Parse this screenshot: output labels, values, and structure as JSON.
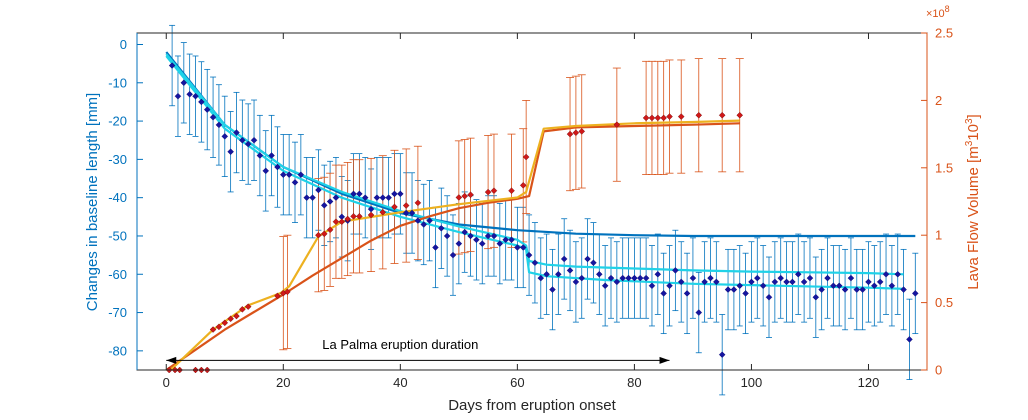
{
  "chart_data": {
    "type": "scatter",
    "xlabel": "Days from eruption onset",
    "y_left_label": "Changes in baseline length [mm]",
    "y_right_label_pre": "Lava Flow Volume [m",
    "y_right_label_sup": "3",
    "y_right_label_mid": "10",
    "y_right_label_post": "]",
    "y_right_exponent_base": "×10",
    "y_right_exponent_power": "8",
    "xlim": [
      -5,
      130
    ],
    "ylim_left": [
      -85,
      3
    ],
    "ylim_right": [
      0,
      2.5
    ],
    "xticks": [
      0,
      20,
      40,
      60,
      80,
      100,
      120
    ],
    "yticks_left": [
      0,
      -10,
      -20,
      -30,
      -40,
      -50,
      -60,
      -70,
      -80
    ],
    "yticks_right": [
      0,
      0.5,
      1,
      1.5,
      2,
      2.5
    ],
    "annotation": {
      "text": "La Palma eruption duration",
      "x_start": 0,
      "x_end": 86,
      "y": -82.5,
      "label_x": 40,
      "label_y": -79.5
    },
    "colors": {
      "left_axis": "#0072BD",
      "right_axis": "#D95319",
      "baseline_points": "#1515A0",
      "baseline_errorbars": "#0072BD",
      "model_dark_blue": "#0072BD",
      "model_cyan": "#1FD2E8",
      "lava_points": "#D01818",
      "lava_errorbars": "#D95319",
      "model_orange": "#D95319",
      "model_yellow": "#EDB120"
    },
    "series": [
      {
        "kind": "baseline_observations",
        "axis": "left",
        "error": 10.5,
        "points": [
          [
            1,
            -5.5
          ],
          [
            2,
            -13.5
          ],
          [
            3,
            -10
          ],
          [
            4,
            -13
          ],
          [
            5,
            -13.5
          ],
          [
            6,
            -15
          ],
          [
            7,
            -17
          ],
          [
            8,
            -19
          ],
          [
            9,
            -21
          ],
          [
            10,
            -24
          ],
          [
            11,
            -28
          ],
          [
            12,
            -23
          ],
          [
            13,
            -25
          ],
          [
            14,
            -26
          ],
          [
            15,
            -25
          ],
          [
            16,
            -29
          ],
          [
            17,
            -33
          ],
          [
            18,
            -29
          ],
          [
            19,
            -32
          ],
          [
            20,
            -34
          ],
          [
            21,
            -34
          ],
          [
            22,
            -36
          ],
          [
            23,
            -34
          ],
          [
            24,
            -40
          ],
          [
            25,
            -40
          ],
          [
            26,
            -38
          ],
          [
            27,
            -42
          ],
          [
            28,
            -41
          ],
          [
            29,
            -40
          ],
          [
            30,
            -45
          ],
          [
            31,
            -46
          ],
          [
            32,
            -39
          ],
          [
            33,
            -39
          ],
          [
            34,
            -40
          ],
          [
            35,
            -43
          ],
          [
            36,
            -40
          ],
          [
            37,
            -40
          ],
          [
            38,
            -40
          ],
          [
            39,
            -39
          ],
          [
            40,
            -39
          ],
          [
            41,
            -44
          ],
          [
            42,
            -44
          ],
          [
            43,
            -46
          ],
          [
            44,
            -47
          ],
          [
            45,
            -46
          ],
          [
            46,
            -53
          ],
          [
            47,
            -48
          ],
          [
            48,
            -50
          ],
          [
            49,
            -55
          ],
          [
            50,
            -52
          ],
          [
            51,
            -49
          ],
          [
            52,
            -50
          ],
          [
            53,
            -51
          ],
          [
            54,
            -52
          ],
          [
            55,
            -50
          ],
          [
            56,
            -50
          ],
          [
            57,
            -52
          ],
          [
            58,
            -51
          ],
          [
            59,
            -51
          ],
          [
            60,
            -53
          ],
          [
            61,
            -53
          ],
          [
            62,
            -55
          ],
          [
            63,
            -57
          ],
          [
            64,
            -61
          ],
          [
            65,
            -60
          ],
          [
            66,
            -64
          ],
          [
            67,
            -60
          ],
          [
            68,
            -56
          ],
          [
            69,
            -59
          ],
          [
            70,
            -62
          ],
          [
            71,
            -61
          ],
          [
            72,
            -56
          ],
          [
            73,
            -57
          ],
          [
            74,
            -60
          ],
          [
            75,
            -63
          ],
          [
            76,
            -61
          ],
          [
            77,
            -62
          ],
          [
            78,
            -61
          ],
          [
            79,
            -61
          ],
          [
            80,
            -61
          ],
          [
            81,
            -61
          ],
          [
            82,
            -61
          ],
          [
            83,
            -63
          ],
          [
            84,
            -60
          ],
          [
            85,
            -65
          ],
          [
            86,
            -63
          ],
          [
            87,
            -59
          ],
          [
            88,
            -62
          ],
          [
            89,
            -65
          ],
          [
            90,
            -61
          ],
          [
            91,
            -70
          ],
          [
            92,
            -62
          ],
          [
            93,
            -61
          ],
          [
            94,
            -62
          ],
          [
            95,
            -81
          ],
          [
            96,
            -64
          ],
          [
            97,
            -64
          ],
          [
            98,
            -63
          ],
          [
            99,
            -65
          ],
          [
            100,
            -62
          ],
          [
            101,
            -61
          ],
          [
            102,
            -63
          ],
          [
            103,
            -66
          ],
          [
            104,
            -62
          ],
          [
            105,
            -61
          ],
          [
            106,
            -62
          ],
          [
            107,
            -62
          ],
          [
            108,
            -60
          ],
          [
            109,
            -62
          ],
          [
            110,
            -61
          ],
          [
            111,
            -66
          ],
          [
            112,
            -64
          ],
          [
            113,
            -61
          ],
          [
            114,
            -63
          ],
          [
            115,
            -63
          ],
          [
            116,
            -64
          ],
          [
            117,
            -61
          ],
          [
            118,
            -64
          ],
          [
            119,
            -64
          ],
          [
            120,
            -62
          ],
          [
            121,
            -63
          ],
          [
            122,
            -62
          ],
          [
            123,
            -60
          ],
          [
            124,
            -63
          ],
          [
            125,
            -60
          ],
          [
            126,
            -64
          ],
          [
            127,
            -77
          ],
          [
            128,
            -65
          ]
        ]
      },
      {
        "kind": "lava_volume_observations",
        "axis": "right",
        "error": 0.42,
        "error_from_x": 20,
        "points": [
          [
            0.5,
            0
          ],
          [
            1.5,
            0
          ],
          [
            2.3,
            0
          ],
          [
            5,
            0
          ],
          [
            6,
            0
          ],
          [
            7,
            0
          ],
          [
            8,
            0.3
          ],
          [
            9,
            0.32
          ],
          [
            10,
            0.35
          ],
          [
            11,
            0.38
          ],
          [
            12,
            0.4
          ],
          [
            13,
            0.45
          ],
          [
            14,
            0.47
          ],
          [
            19,
            0.55
          ],
          [
            20,
            0.57
          ],
          [
            20.7,
            0.58
          ],
          [
            26,
            1.0
          ],
          [
            27,
            1.01
          ],
          [
            28,
            1.04
          ],
          [
            29,
            1.1
          ],
          [
            30,
            1.1
          ],
          [
            31,
            1.12
          ],
          [
            32,
            1.14
          ],
          [
            33,
            1.14
          ],
          [
            35,
            1.15
          ],
          [
            37,
            1.17
          ],
          [
            39,
            1.21
          ],
          [
            41,
            1.22
          ],
          [
            43,
            1.24
          ],
          [
            50,
            1.28
          ],
          [
            51,
            1.29
          ],
          [
            52,
            1.3
          ],
          [
            55,
            1.32
          ],
          [
            56,
            1.33
          ],
          [
            59,
            1.33
          ],
          [
            61,
            1.37
          ],
          [
            61.5,
            1.58
          ],
          [
            69,
            1.75
          ],
          [
            70,
            1.76
          ],
          [
            71,
            1.77
          ],
          [
            77,
            1.82
          ],
          [
            82,
            1.87
          ],
          [
            83,
            1.87
          ],
          [
            84,
            1.87
          ],
          [
            85,
            1.87
          ],
          [
            86,
            1.88
          ],
          [
            88,
            1.88
          ],
          [
            91,
            1.89
          ],
          [
            95,
            1.89
          ],
          [
            98,
            1.89
          ]
        ]
      },
      {
        "kind": "model_dark_blue",
        "axis": "left",
        "points": [
          [
            0,
            -2
          ],
          [
            10,
            -21
          ],
          [
            20,
            -32
          ],
          [
            30,
            -39
          ],
          [
            40,
            -44
          ],
          [
            50,
            -47
          ],
          [
            60,
            -48.5
          ],
          [
            70,
            -49.4
          ],
          [
            80,
            -49.8
          ],
          [
            90,
            -50
          ],
          [
            100,
            -50
          ],
          [
            110,
            -50
          ],
          [
            120,
            -50
          ],
          [
            128,
            -50
          ]
        ]
      },
      {
        "kind": "model_cyan",
        "axis": "left",
        "points": [
          [
            0,
            -2.5
          ],
          [
            10,
            -21
          ],
          [
            20,
            -32
          ],
          [
            30,
            -38.5
          ],
          [
            40,
            -43.5
          ],
          [
            50,
            -47.5
          ],
          [
            60,
            -51
          ],
          [
            61.5,
            -52.5
          ],
          [
            62,
            -56.5
          ],
          [
            65,
            -57.5
          ],
          [
            70,
            -58
          ],
          [
            80,
            -58.5
          ],
          [
            90,
            -59
          ],
          [
            100,
            -59.3
          ],
          [
            110,
            -59.5
          ],
          [
            120,
            -59.7
          ],
          [
            126,
            -60
          ]
        ]
      },
      {
        "kind": "model_cyan_lower",
        "axis": "left",
        "points": [
          [
            0,
            -3
          ],
          [
            10,
            -22
          ],
          [
            20,
            -33
          ],
          [
            30,
            -40
          ],
          [
            40,
            -45
          ],
          [
            50,
            -49
          ],
          [
            60,
            -52.5
          ],
          [
            61.5,
            -53.5
          ],
          [
            62,
            -59.5
          ],
          [
            65,
            -60.5
          ],
          [
            75,
            -61.5
          ],
          [
            90,
            -62.5
          ],
          [
            105,
            -63
          ],
          [
            120,
            -63.5
          ],
          [
            126,
            -63.8
          ]
        ]
      },
      {
        "kind": "model_orange",
        "axis": "right",
        "points": [
          [
            0,
            0
          ],
          [
            5,
            0.15
          ],
          [
            10,
            0.3
          ],
          [
            15,
            0.43
          ],
          [
            20,
            0.56
          ],
          [
            25,
            0.7
          ],
          [
            30,
            0.83
          ],
          [
            35,
            0.96
          ],
          [
            40,
            1.07
          ],
          [
            45,
            1.14
          ],
          [
            50,
            1.2
          ],
          [
            55,
            1.24
          ],
          [
            60,
            1.27
          ],
          [
            62,
            1.29
          ],
          [
            64.5,
            1.77
          ],
          [
            70,
            1.8
          ],
          [
            80,
            1.81
          ],
          [
            90,
            1.82
          ],
          [
            98,
            1.83
          ]
        ]
      },
      {
        "kind": "model_yellow",
        "axis": "right",
        "points": [
          [
            0,
            0
          ],
          [
            1,
            0.01
          ],
          [
            8,
            0.3
          ],
          [
            14,
            0.48
          ],
          [
            19.5,
            0.57
          ],
          [
            21,
            0.62
          ],
          [
            26,
            0.99
          ],
          [
            30,
            1.1
          ],
          [
            40,
            1.17
          ],
          [
            50,
            1.23
          ],
          [
            60,
            1.28
          ],
          [
            61.5,
            1.32
          ],
          [
            64.5,
            1.79
          ],
          [
            70,
            1.81
          ],
          [
            80,
            1.83
          ],
          [
            90,
            1.84
          ],
          [
            98,
            1.85
          ]
        ]
      }
    ]
  }
}
